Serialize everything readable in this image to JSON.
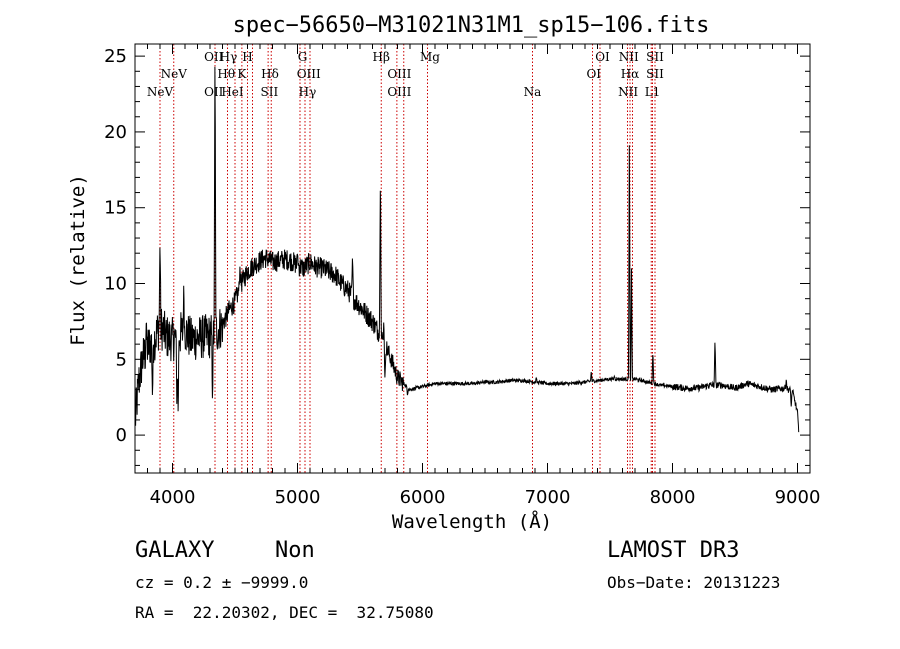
{
  "chart_data": {
    "type": "line",
    "title": "spec−56650−M31021N31M1_sp15−106.fits",
    "xlabel": "Wavelength (Å)",
    "ylabel": "Flux (relative)",
    "xlim": [
      3700,
      9100
    ],
    "ylim": [
      -2.5,
      25.8
    ],
    "xticks": [
      4000,
      5000,
      6000,
      7000,
      8000,
      9000
    ],
    "yticks": [
      0,
      5,
      10,
      15,
      20,
      25
    ],
    "line_color": "#000000",
    "marker_color": "#cc0000",
    "spectrum_anchors": [
      [
        3700,
        0.8
      ],
      [
        3730,
        3.5
      ],
      [
        3760,
        5.0
      ],
      [
        3800,
        5.8
      ],
      [
        3850,
        6.2
      ],
      [
        3900,
        7.3
      ],
      [
        3950,
        6.5
      ],
      [
        4000,
        6.3
      ],
      [
        4050,
        6.6
      ],
      [
        4100,
        6.9
      ],
      [
        4150,
        6.3
      ],
      [
        4200,
        6.4
      ],
      [
        4250,
        6.5
      ],
      [
        4300,
        6.5
      ],
      [
        4350,
        6.8
      ],
      [
        4400,
        7.3
      ],
      [
        4450,
        8.2
      ],
      [
        4500,
        8.8
      ],
      [
        4550,
        10.0
      ],
      [
        4600,
        10.8
      ],
      [
        4650,
        11.2
      ],
      [
        4700,
        11.5
      ],
      [
        4750,
        11.7
      ],
      [
        4800,
        11.4
      ],
      [
        4850,
        11.5
      ],
      [
        4900,
        11.6
      ],
      [
        4950,
        11.5
      ],
      [
        5000,
        11.2
      ],
      [
        5050,
        11.0
      ],
      [
        5100,
        11.4
      ],
      [
        5150,
        11.1
      ],
      [
        5200,
        11.0
      ],
      [
        5250,
        10.8
      ],
      [
        5300,
        10.6
      ],
      [
        5350,
        10.0
      ],
      [
        5400,
        9.6
      ],
      [
        5450,
        9.0
      ],
      [
        5500,
        8.5
      ],
      [
        5550,
        8.0
      ],
      [
        5600,
        7.5
      ],
      [
        5650,
        6.8
      ],
      [
        5700,
        6.0
      ],
      [
        5750,
        5.0
      ],
      [
        5800,
        3.8
      ],
      [
        5850,
        3.4
      ],
      [
        5900,
        3.0
      ],
      [
        5950,
        3.1
      ],
      [
        6000,
        3.2
      ],
      [
        6100,
        3.4
      ],
      [
        6200,
        3.4
      ],
      [
        6300,
        3.4
      ],
      [
        6400,
        3.4
      ],
      [
        6500,
        3.5
      ],
      [
        6600,
        3.5
      ],
      [
        6700,
        3.6
      ],
      [
        6800,
        3.6
      ],
      [
        6900,
        3.5
      ],
      [
        7000,
        3.4
      ],
      [
        7100,
        3.4
      ],
      [
        7200,
        3.4
      ],
      [
        7300,
        3.5
      ],
      [
        7400,
        3.6
      ],
      [
        7500,
        3.7
      ],
      [
        7600,
        3.7
      ],
      [
        7700,
        3.7
      ],
      [
        7800,
        3.5
      ],
      [
        7900,
        3.3
      ],
      [
        8000,
        3.2
      ],
      [
        8100,
        3.1
      ],
      [
        8200,
        3.1
      ],
      [
        8300,
        3.3
      ],
      [
        8400,
        3.3
      ],
      [
        8500,
        3.1
      ],
      [
        8600,
        3.4
      ],
      [
        8700,
        3.2
      ],
      [
        8800,
        3.0
      ],
      [
        8900,
        3.1
      ],
      [
        8960,
        2.9
      ],
      [
        9000,
        1.5
      ],
      [
        9010,
        0.0
      ]
    ],
    "spikes": [
      [
        3790,
        7.5
      ],
      [
        3900,
        12.8
      ],
      [
        4090,
        10.0
      ],
      [
        4340,
        25.6
      ],
      [
        4540,
        11.2
      ],
      [
        5000,
        12.0
      ],
      [
        5440,
        11.8
      ],
      [
        5663,
        17.8
      ],
      [
        5690,
        7.5
      ],
      [
        6910,
        3.8
      ],
      [
        7350,
        4.2
      ],
      [
        7535,
        3.9
      ],
      [
        7655,
        20.3
      ],
      [
        7672,
        11.0
      ],
      [
        7843,
        5.6
      ],
      [
        8340,
        6.3
      ],
      [
        8910,
        3.7
      ]
    ],
    "dips": [
      [
        3840,
        2.4
      ],
      [
        4035,
        1.8
      ],
      [
        4045,
        1.2
      ],
      [
        4320,
        2.2
      ],
      [
        5700,
        3.6
      ],
      [
        5880,
        2.6
      ],
      [
        8950,
        1.8
      ]
    ],
    "line_markers": [
      3900,
      4010,
      4340,
      4440,
      4500,
      4555,
      4600,
      4640,
      4765,
      4790,
      5020,
      5060,
      5100,
      5670,
      5795,
      5850,
      6040,
      6880,
      7360,
      7420,
      7640,
      7660,
      7680,
      7830,
      7840,
      7860
    ],
    "line_labels": [
      {
        "text": "NeV",
        "x": 3900,
        "row": 3
      },
      {
        "text": "NeV",
        "x": 4010,
        "row": 2
      },
      {
        "text": "OII",
        "x": 4330,
        "row": 1
      },
      {
        "text": "OII",
        "x": 4330,
        "row": 3
      },
      {
        "text": "Hγ",
        "x": 4448,
        "row": 1
      },
      {
        "text": "Hθ",
        "x": 4430,
        "row": 2
      },
      {
        "text": "HeI",
        "x": 4480,
        "row": 3
      },
      {
        "text": "H",
        "x": 4600,
        "row": 1
      },
      {
        "text": "K",
        "x": 4555,
        "row": 2
      },
      {
        "text": "Hδ",
        "x": 4780,
        "row": 2
      },
      {
        "text": "SII",
        "x": 4775,
        "row": 3
      },
      {
        "text": "G",
        "x": 5040,
        "row": 1
      },
      {
        "text": "OIII",
        "x": 5090,
        "row": 2
      },
      {
        "text": "Hγ",
        "x": 5080,
        "row": 3
      },
      {
        "text": "Hβ",
        "x": 5670,
        "row": 1
      },
      {
        "text": "OIII",
        "x": 5815,
        "row": 2
      },
      {
        "text": "OIII",
        "x": 5815,
        "row": 3
      },
      {
        "text": "Mg",
        "x": 6060,
        "row": 1
      },
      {
        "text": "Na",
        "x": 6880,
        "row": 3
      },
      {
        "text": "OI",
        "x": 7440,
        "row": 1
      },
      {
        "text": "OI",
        "x": 7370,
        "row": 2
      },
      {
        "text": "NII",
        "x": 7650,
        "row": 1
      },
      {
        "text": "Hα",
        "x": 7660,
        "row": 2
      },
      {
        "text": "NII",
        "x": 7645,
        "row": 3
      },
      {
        "text": "SII",
        "x": 7860,
        "row": 1
      },
      {
        "text": "SII",
        "x": 7860,
        "row": 2
      },
      {
        "text": "L1",
        "x": 7840,
        "row": 3
      }
    ]
  },
  "info": {
    "object_class": "GALAXY",
    "subclass": "Non",
    "survey": "LAMOST DR3",
    "redshift": "cz = 0.2 ± −9999.0",
    "obs_date": "Obs−Date: 20131223",
    "coords": "RA =  22.20302, DEC =  32.75080"
  }
}
